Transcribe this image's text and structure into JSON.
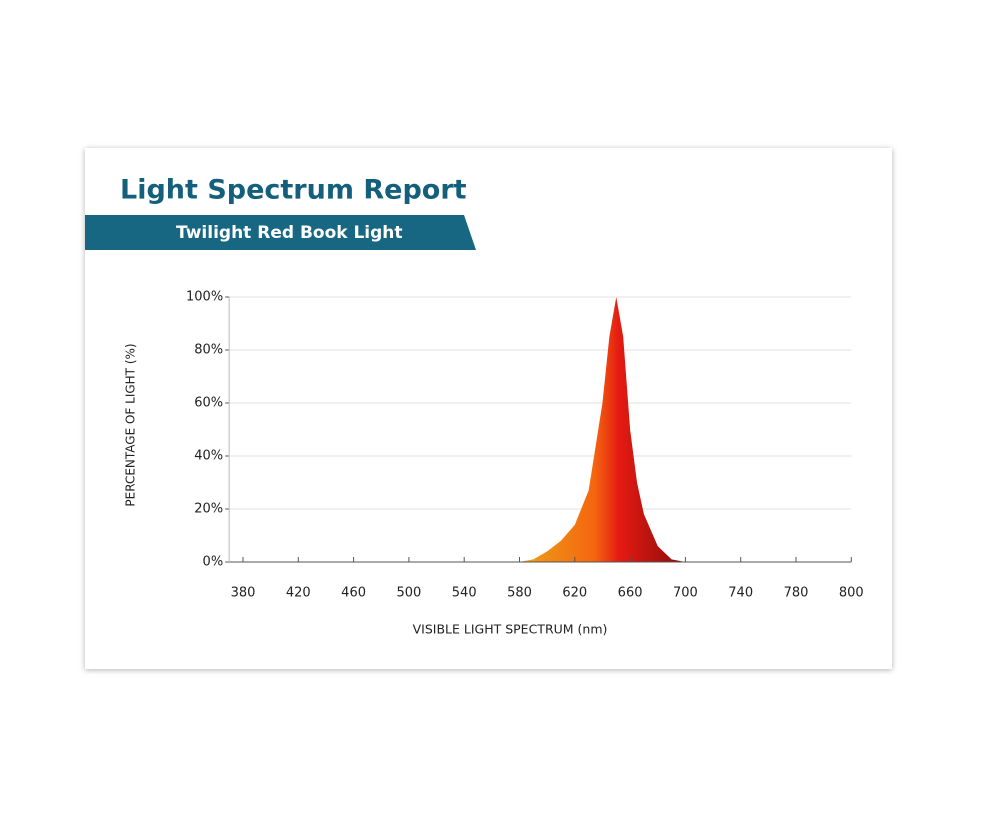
{
  "chart_data": {
    "type": "area",
    "title": "Light Spectrum Report",
    "subtitle": "Twilight Red Book Light",
    "xlabel": "VISIBLE LIGHT SPECTRUM (nm)",
    "ylabel": "PERCENTAGE OF LIGHT (%)",
    "x": [
      580,
      590,
      600,
      610,
      620,
      630,
      640,
      645,
      650,
      655,
      660,
      665,
      670,
      680,
      690,
      700
    ],
    "values": [
      0,
      1,
      4,
      8,
      14,
      27,
      60,
      85,
      100,
      85,
      50,
      30,
      18,
      6,
      1,
      0
    ],
    "colors": [
      "#eaa31a",
      "#f5660f",
      "#e41b12",
      "#8a0b0b"
    ],
    "xlim": [
      370,
      800
    ],
    "xticks": [
      380,
      420,
      460,
      500,
      540,
      580,
      620,
      660,
      700,
      740,
      780,
      800
    ],
    "ylim": [
      0,
      100
    ],
    "yticks": [
      {
        "value": 0,
        "label": "0%"
      },
      {
        "value": 20,
        "label": "20%"
      },
      {
        "value": 40,
        "label": "40%"
      },
      {
        "value": 60,
        "label": "60%"
      },
      {
        "value": 80,
        "label": "80%"
      },
      {
        "value": 100,
        "label": "100%"
      }
    ],
    "grid": true
  }
}
